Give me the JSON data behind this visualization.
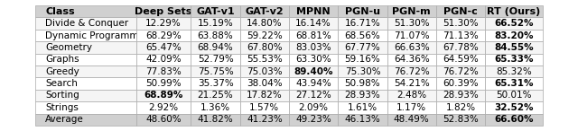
{
  "columns": [
    "Class",
    "Deep Sets",
    "GAT-v1",
    "GAT-v2",
    "MPNN",
    "PGN-u",
    "PGN-m",
    "PGN-c",
    "RT (Ours)"
  ],
  "rows": [
    [
      "Divide & Conquer",
      "12.29%",
      "15.19%",
      "14.80%",
      "16.14%",
      "16.71%",
      "51.30%",
      "51.30%",
      "66.52%"
    ],
    [
      "Dynamic Programming",
      "68.29%",
      "63.88%",
      "59.22%",
      "68.81%",
      "68.56%",
      "71.07%",
      "71.13%",
      "83.20%"
    ],
    [
      "Geometry",
      "65.47%",
      "68.94%",
      "67.80%",
      "83.03%",
      "67.77%",
      "66.63%",
      "67.78%",
      "84.55%"
    ],
    [
      "Graphs",
      "42.09%",
      "52.79%",
      "55.53%",
      "63.30%",
      "59.16%",
      "64.36%",
      "64.59%",
      "65.33%"
    ],
    [
      "Greedy",
      "77.83%",
      "75.75%",
      "75.03%",
      "89.40%",
      "75.30%",
      "76.72%",
      "76.72%",
      "85.32%"
    ],
    [
      "Search",
      "50.99%",
      "35.37%",
      "38.04%",
      "43.94%",
      "50.98%",
      "54.21%",
      "60.39%",
      "65.31%"
    ],
    [
      "Sorting",
      "68.89%",
      "21.25%",
      "17.82%",
      "27.12%",
      "28.93%",
      "2.48%",
      "28.93%",
      "50.01%"
    ],
    [
      "Strings",
      "2.92%",
      "1.36%",
      "1.57%",
      "2.09%",
      "1.61%",
      "1.17%",
      "1.82%",
      "32.52%"
    ],
    [
      "Average",
      "48.60%",
      "41.82%",
      "41.23%",
      "49.23%",
      "46.13%",
      "48.49%",
      "52.83%",
      "66.60%"
    ]
  ],
  "bold_cells": {
    "0": [
      8
    ],
    "1": [
      8
    ],
    "2": [
      8
    ],
    "3": [
      8
    ],
    "4": [
      4
    ],
    "5": [
      8
    ],
    "6": [
      1
    ],
    "7": [
      8
    ],
    "8": [
      8
    ]
  },
  "header_bg": "#d0d0d0",
  "row_bg_odd": "#f5f5f5",
  "row_bg_even": "#ffffff",
  "avg_bg": "#d0d0d0",
  "font_size": 7.5,
  "header_font_size": 8.0
}
